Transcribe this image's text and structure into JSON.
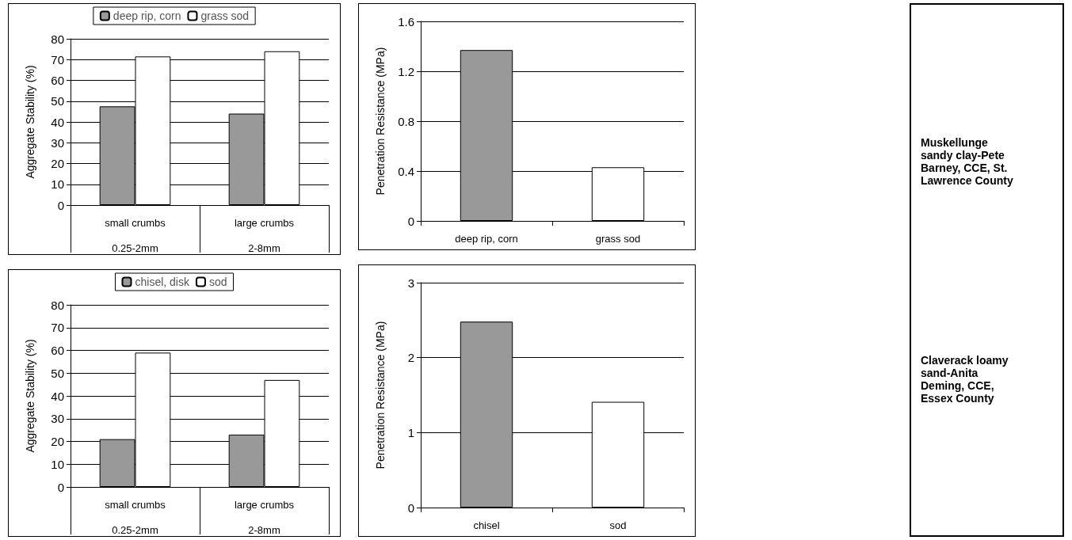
{
  "chart_data": [
    {
      "type": "bar",
      "ylabel": "Aggregate Stability (%)",
      "categories": [
        "small crumbs\n\n0.25-2mm",
        "large crumbs\n\n2-8mm"
      ],
      "series": [
        {
          "name": "deep rip, corn",
          "color": "#999999",
          "values": [
            47.5,
            44
          ]
        },
        {
          "name": "grass sod",
          "color": "#ffffff",
          "values": [
            71.5,
            74
          ]
        }
      ],
      "ylim": [
        0,
        80
      ],
      "yticks": [
        0,
        10,
        20,
        30,
        40,
        50,
        60,
        70,
        80
      ],
      "grid": "y",
      "legend": "top"
    },
    {
      "type": "bar",
      "ylabel": "Penetration Resistance (MPa)",
      "categories": [
        "deep rip, corn",
        "grass sod"
      ],
      "values": [
        1.37,
        0.43
      ],
      "colors": [
        "#999999",
        "#ffffff"
      ],
      "ylim": [
        0,
        1.6
      ],
      "yticks": [
        0,
        0.4,
        0.8,
        1.2,
        1.6
      ],
      "grid": "y"
    },
    {
      "type": "bar",
      "ylabel": "Aggregate Stability (%)",
      "categories": [
        "small crumbs\n\n0.25-2mm",
        "large crumbs\n\n2-8mm"
      ],
      "series": [
        {
          "name": "chisel, disk",
          "color": "#999999",
          "values": [
            21,
            23
          ]
        },
        {
          "name": "sod",
          "color": "#ffffff",
          "values": [
            59,
            47
          ]
        }
      ],
      "ylim": [
        0,
        80
      ],
      "yticks": [
        0,
        10,
        20,
        30,
        40,
        50,
        60,
        70,
        80
      ],
      "grid": "y",
      "legend": "top"
    },
    {
      "type": "bar",
      "ylabel": "Penetration Resistance (MPa)",
      "categories": [
        "chisel",
        "sod"
      ],
      "values": [
        2.48,
        1.41
      ],
      "colors": [
        "#999999",
        "#ffffff"
      ],
      "ylim": [
        0,
        3
      ],
      "yticks": [
        0,
        1,
        2,
        3
      ],
      "grid": "y"
    },
    {
      "type": "other",
      "annotations": [
        "Muskellunge sandy clay-Pete Barney, CCE, St. Lawrence County",
        "Claverack loamy sand-Anita Deming, CCE, Essex County"
      ]
    }
  ]
}
